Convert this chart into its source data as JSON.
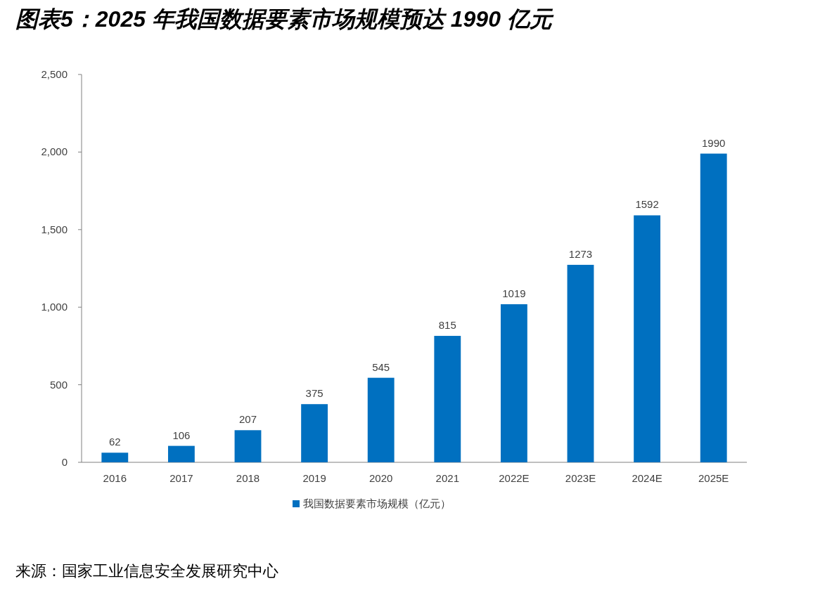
{
  "chart_data": {
    "type": "bar",
    "title": "图表5：2025 年我国数据要素市场规模预达 1990 亿元",
    "categories": [
      "2016",
      "2017",
      "2018",
      "2019",
      "2020",
      "2021",
      "2022E",
      "2023E",
      "2024E",
      "2025E"
    ],
    "series": [
      {
        "name": "我国数据要素市场规模（亿元）",
        "color": "#0070c0",
        "values": [
          62,
          106,
          207,
          375,
          545,
          815,
          1019,
          1273,
          1592,
          1990
        ]
      }
    ],
    "ylim": [
      0,
      2500
    ],
    "yticks": [
      0,
      {
        "value": 500,
        "label": "500"
      },
      {
        "value": 1000,
        "label": "1,000"
      },
      {
        "value": 1500,
        "label": "1,500"
      },
      {
        "value": 2000,
        "label": "2,000"
      },
      {
        "value": 2500,
        "label": "2,500"
      }
    ],
    "data_labels": true,
    "grid": false,
    "legend": "bottom",
    "annotations": [
      "来源：国家工业信息安全发展研究中心"
    ]
  }
}
